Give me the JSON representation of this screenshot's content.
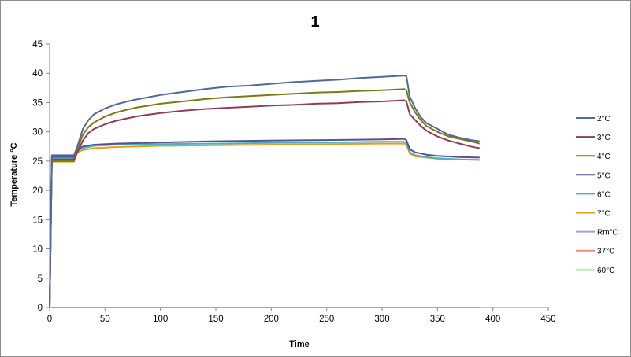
{
  "chart_data": {
    "type": "line",
    "title": "1",
    "xlabel": "Time",
    "ylabel": "Temperature °C",
    "xlim": [
      0,
      450
    ],
    "ylim": [
      0,
      45
    ],
    "xticks": [
      0,
      50,
      100,
      150,
      200,
      250,
      300,
      350,
      400,
      450
    ],
    "yticks": [
      0,
      5,
      10,
      15,
      20,
      25,
      30,
      35,
      40,
      45
    ],
    "grid": false,
    "legend_position": "right",
    "series": [
      {
        "name": "2°C",
        "color": "#4f6a9a",
        "points": [
          [
            0,
            0
          ],
          [
            2,
            26
          ],
          [
            5,
            26
          ],
          [
            10,
            26
          ],
          [
            15,
            26
          ],
          [
            22,
            26
          ],
          [
            25,
            27.5
          ],
          [
            30,
            30.5
          ],
          [
            35,
            32
          ],
          [
            40,
            33
          ],
          [
            50,
            34
          ],
          [
            60,
            34.7
          ],
          [
            70,
            35.2
          ],
          [
            80,
            35.6
          ],
          [
            100,
            36.3
          ],
          [
            120,
            36.8
          ],
          [
            140,
            37.3
          ],
          [
            160,
            37.7
          ],
          [
            180,
            37.9
          ],
          [
            200,
            38.2
          ],
          [
            220,
            38.5
          ],
          [
            240,
            38.7
          ],
          [
            260,
            38.9
          ],
          [
            280,
            39.2
          ],
          [
            300,
            39.4
          ],
          [
            320,
            39.6
          ],
          [
            322,
            39.5
          ],
          [
            325,
            36
          ],
          [
            330,
            34
          ],
          [
            335,
            32.5
          ],
          [
            340,
            31.5
          ],
          [
            350,
            30.5
          ],
          [
            360,
            29.5
          ],
          [
            370,
            29
          ],
          [
            380,
            28.6
          ],
          [
            388,
            28.4
          ]
        ]
      },
      {
        "name": "3°C",
        "color": "#943a5a",
        "points": [
          [
            0,
            0
          ],
          [
            2,
            25.3
          ],
          [
            5,
            25.3
          ],
          [
            10,
            25.3
          ],
          [
            15,
            25.3
          ],
          [
            22,
            25.3
          ],
          [
            25,
            26.5
          ],
          [
            30,
            28.5
          ],
          [
            35,
            29.8
          ],
          [
            40,
            30.5
          ],
          [
            50,
            31.3
          ],
          [
            60,
            31.9
          ],
          [
            70,
            32.3
          ],
          [
            80,
            32.7
          ],
          [
            100,
            33.2
          ],
          [
            120,
            33.6
          ],
          [
            140,
            33.9
          ],
          [
            160,
            34.1
          ],
          [
            180,
            34.3
          ],
          [
            200,
            34.5
          ],
          [
            220,
            34.6
          ],
          [
            240,
            34.8
          ],
          [
            260,
            34.9
          ],
          [
            280,
            35.1
          ],
          [
            300,
            35.2
          ],
          [
            320,
            35.4
          ],
          [
            322,
            35.2
          ],
          [
            325,
            33
          ],
          [
            330,
            32
          ],
          [
            335,
            31
          ],
          [
            340,
            30.2
          ],
          [
            350,
            29.2
          ],
          [
            360,
            28.5
          ],
          [
            370,
            28
          ],
          [
            380,
            27.5
          ],
          [
            388,
            27.2
          ]
        ]
      },
      {
        "name": "4°C",
        "color": "#7b7b14",
        "points": [
          [
            0,
            0
          ],
          [
            2,
            25
          ],
          [
            5,
            25
          ],
          [
            10,
            25
          ],
          [
            15,
            25
          ],
          [
            22,
            25
          ],
          [
            25,
            27
          ],
          [
            30,
            29.5
          ],
          [
            35,
            30.8
          ],
          [
            40,
            31.6
          ],
          [
            50,
            32.6
          ],
          [
            60,
            33.3
          ],
          [
            70,
            33.8
          ],
          [
            80,
            34.2
          ],
          [
            100,
            34.8
          ],
          [
            120,
            35.2
          ],
          [
            140,
            35.6
          ],
          [
            160,
            35.9
          ],
          [
            180,
            36.1
          ],
          [
            200,
            36.3
          ],
          [
            220,
            36.5
          ],
          [
            240,
            36.7
          ],
          [
            260,
            36.8
          ],
          [
            280,
            37
          ],
          [
            300,
            37.1
          ],
          [
            320,
            37.3
          ],
          [
            322,
            37.1
          ],
          [
            325,
            35
          ],
          [
            330,
            33.3
          ],
          [
            335,
            32
          ],
          [
            340,
            31
          ],
          [
            350,
            30
          ],
          [
            360,
            29.2
          ],
          [
            370,
            28.8
          ],
          [
            380,
            28.4
          ],
          [
            388,
            28
          ]
        ]
      },
      {
        "name": "5°C",
        "color": "#5a4f8f",
        "points": [
          [
            0,
            0
          ],
          [
            2,
            25.7
          ],
          [
            5,
            25.7
          ],
          [
            10,
            25.7
          ],
          [
            15,
            25.7
          ],
          [
            22,
            25.7
          ],
          [
            25,
            27
          ],
          [
            30,
            27.5
          ],
          [
            40,
            27.8
          ],
          [
            60,
            28
          ],
          [
            100,
            28.2
          ],
          [
            150,
            28.4
          ],
          [
            200,
            28.5
          ],
          [
            250,
            28.6
          ],
          [
            300,
            28.7
          ],
          [
            320,
            28.8
          ],
          [
            322,
            28.6
          ],
          [
            325,
            27
          ],
          [
            330,
            26.5
          ],
          [
            340,
            26.1
          ],
          [
            350,
            25.9
          ],
          [
            370,
            25.7
          ],
          [
            388,
            25.6
          ]
        ]
      },
      {
        "name": "6°C",
        "color": "#3fb6c8",
        "points": [
          [
            0,
            0
          ],
          [
            2,
            25.4
          ],
          [
            5,
            25.4
          ],
          [
            10,
            25.4
          ],
          [
            15,
            25.4
          ],
          [
            22,
            25.4
          ],
          [
            25,
            26.8
          ],
          [
            30,
            27.2
          ],
          [
            40,
            27.6
          ],
          [
            60,
            27.8
          ],
          [
            100,
            27.9
          ],
          [
            150,
            28
          ],
          [
            200,
            28.1
          ],
          [
            250,
            28.2
          ],
          [
            300,
            28.3
          ],
          [
            320,
            28.3
          ],
          [
            322,
            28.1
          ],
          [
            325,
            26.5
          ],
          [
            330,
            26
          ],
          [
            340,
            25.7
          ],
          [
            350,
            25.5
          ],
          [
            370,
            25.3
          ],
          [
            388,
            25.2
          ]
        ]
      },
      {
        "name": "7°C",
        "color": "#f09a1a",
        "points": [
          [
            0,
            0
          ],
          [
            2,
            24.9
          ],
          [
            5,
            24.9
          ],
          [
            10,
            24.9
          ],
          [
            15,
            24.9
          ],
          [
            22,
            24.9
          ],
          [
            25,
            26.5
          ],
          [
            30,
            26.9
          ],
          [
            40,
            27.2
          ],
          [
            60,
            27.4
          ],
          [
            100,
            27.6
          ],
          [
            150,
            27.7
          ],
          [
            200,
            27.8
          ],
          [
            250,
            27.9
          ],
          [
            300,
            28
          ],
          [
            320,
            28
          ],
          [
            322,
            27.8
          ],
          [
            325,
            26.3
          ],
          [
            330,
            25.8
          ],
          [
            340,
            25.6
          ],
          [
            350,
            25.4
          ],
          [
            370,
            25.3
          ],
          [
            388,
            25.2
          ]
        ]
      },
      {
        "name": "Rm°C",
        "color": "#9d9de8",
        "points": [
          [
            0,
            0
          ],
          [
            388,
            0
          ]
        ]
      },
      {
        "name": "37°C",
        "color": "#f08a7a",
        "points": [
          [
            0,
            0
          ],
          [
            388,
            0
          ]
        ]
      },
      {
        "name": "60°C",
        "color": "#b8f0b0",
        "points": [
          [
            0,
            0
          ],
          [
            388,
            0
          ]
        ]
      }
    ]
  }
}
